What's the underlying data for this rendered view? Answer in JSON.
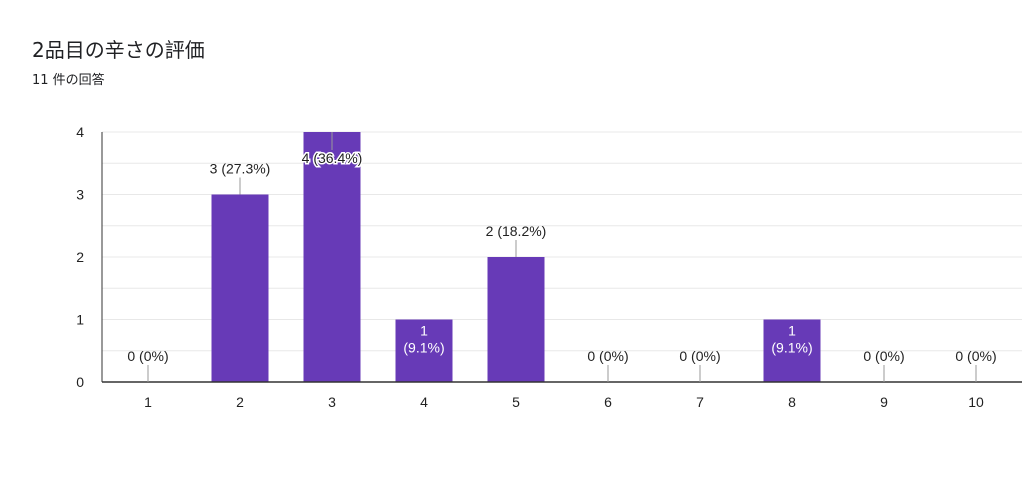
{
  "header": {
    "title": "2品目の辛さの評価",
    "response_count": "11 件の回答"
  },
  "colors": {
    "bar": "#673ab7",
    "grid": "#e8e8e8",
    "axis": "#333333",
    "label_outside": "#222222",
    "label_inside": "#ffffff",
    "leader": "#999999"
  },
  "chart_data": {
    "type": "bar",
    "title": "2品目の辛さの評価",
    "subtitle": "11 件の回答",
    "categories": [
      "1",
      "2",
      "3",
      "4",
      "5",
      "6",
      "7",
      "8",
      "9",
      "10"
    ],
    "values": [
      0,
      3,
      4,
      1,
      2,
      0,
      0,
      1,
      0,
      0
    ],
    "data_labels": [
      "0 (0%)",
      "3 (27.3%)",
      "4 (36.4%)",
      "1 (9.1%)",
      "2 (18.2%)",
      "0 (0%)",
      "0 (0%)",
      "1 (9.1%)",
      "0 (0%)",
      "0 (0%)"
    ],
    "y_ticks": [
      "0",
      "1",
      "2",
      "3",
      "4"
    ],
    "ylim": [
      0,
      4
    ],
    "xlabel": "",
    "ylabel": "",
    "grid": true
  }
}
